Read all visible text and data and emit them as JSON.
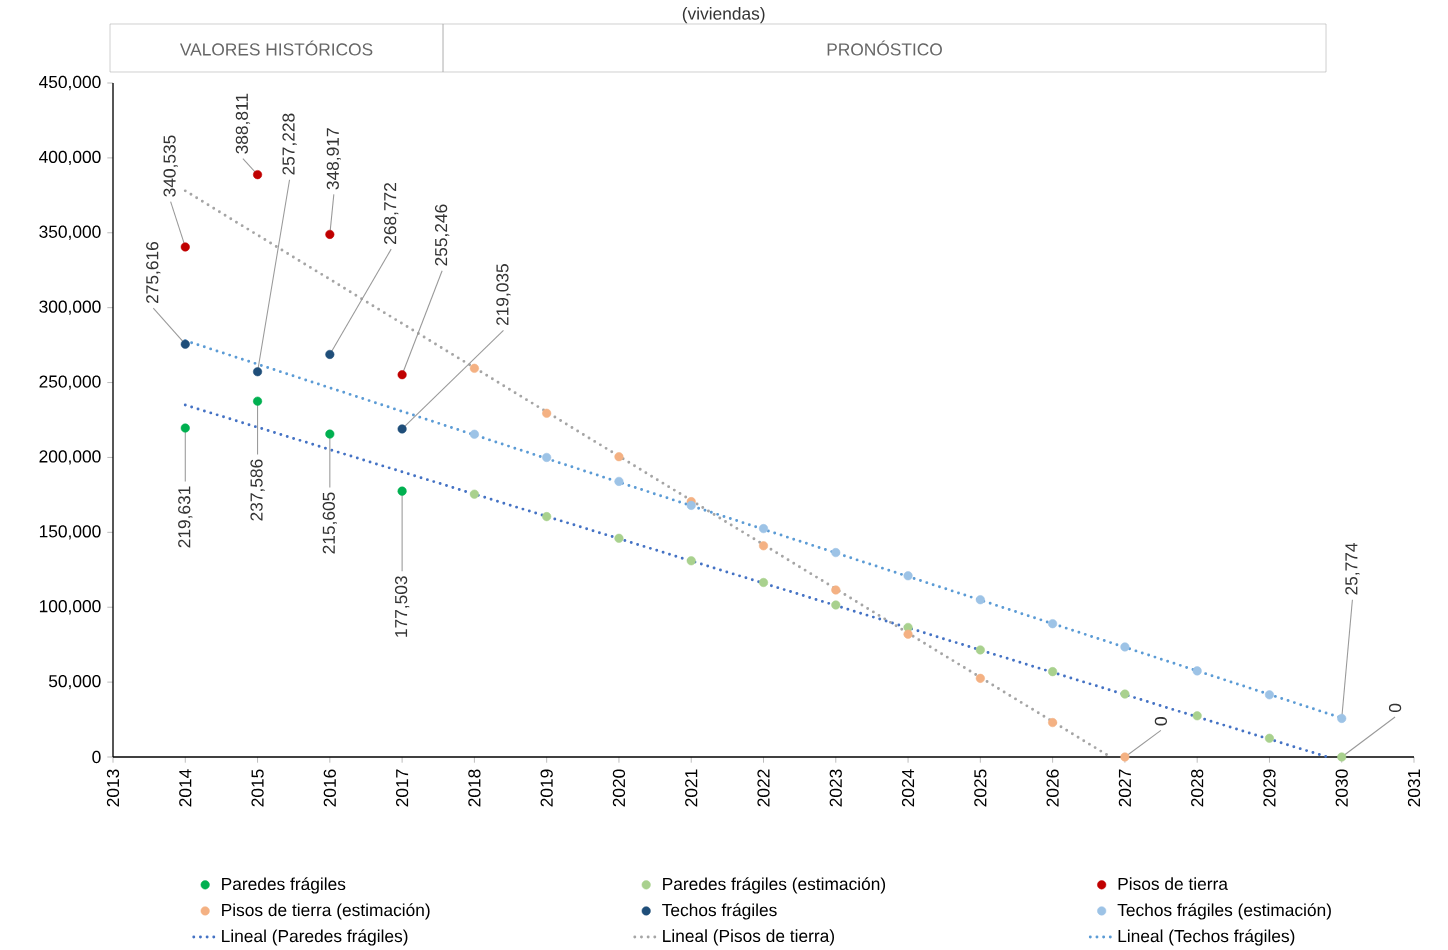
{
  "chart_data": {
    "type": "scatter",
    "title": "(viviendas)",
    "annotations": [
      "VALORES HISTÓRICOS",
      "PRONÓSTICO"
    ],
    "xlim": [
      2013,
      2031
    ],
    "xticks": [
      2013,
      2014,
      2015,
      2016,
      2017,
      2018,
      2019,
      2020,
      2021,
      2022,
      2023,
      2024,
      2025,
      2026,
      2027,
      2028,
      2029,
      2030,
      2031
    ],
    "ylim": [
      0,
      450000
    ],
    "yticks": [
      {
        "value": 0,
        "label": "0"
      },
      {
        "value": 50000,
        "label": "50,000"
      },
      {
        "value": 100000,
        "label": "100,000"
      },
      {
        "value": 150000,
        "label": "150,000"
      },
      {
        "value": 200000,
        "label": "200,000"
      },
      {
        "value": 250000,
        "label": "250,000"
      },
      {
        "value": 300000,
        "label": "300,000"
      },
      {
        "value": 350000,
        "label": "350,000"
      },
      {
        "value": 400000,
        "label": "400,000"
      },
      {
        "value": 450000,
        "label": "450,000"
      }
    ],
    "grid": false,
    "legend": "bottom",
    "series": [
      {
        "name": "Paredes frágiles",
        "marker": "circle",
        "color": "#00b050",
        "x": [
          2014,
          2015,
          2016,
          2017
        ],
        "values": [
          219631,
          237586,
          215605,
          177503
        ],
        "value_labels": [
          "219,631",
          "237,586",
          "215,605",
          "177,503"
        ]
      },
      {
        "name": "Paredes frágiles (estimación)",
        "marker": "circle",
        "color": "#a9d18e",
        "x": [
          2018,
          2019,
          2020,
          2021,
          2022,
          2023,
          2024,
          2025,
          2026,
          2027,
          2028,
          2029,
          2030
        ],
        "values": [
          175500,
          160500,
          146000,
          131000,
          116500,
          101500,
          86500,
          71500,
          57000,
          42000,
          27500,
          12500,
          0
        ],
        "value_labels": [
          null,
          null,
          null,
          null,
          null,
          null,
          null,
          null,
          null,
          null,
          null,
          null,
          "0"
        ]
      },
      {
        "name": "Pisos de tierra",
        "marker": "circle",
        "color": "#c00000",
        "x": [
          2014,
          2015,
          2016,
          2017
        ],
        "values": [
          340535,
          388811,
          348917,
          255246
        ],
        "value_labels": [
          "340,535",
          "388,811",
          "348,917",
          "255,246"
        ]
      },
      {
        "name": "Pisos de tierra (estimación)",
        "marker": "circle",
        "color": "#f4b183",
        "x": [
          2018,
          2019,
          2020,
          2021,
          2022,
          2023,
          2024,
          2025,
          2026,
          2027
        ],
        "values": [
          259500,
          229500,
          200500,
          170500,
          141000,
          111500,
          82000,
          52500,
          23000,
          0
        ],
        "value_labels": [
          null,
          null,
          null,
          null,
          null,
          null,
          null,
          null,
          null,
          "0"
        ]
      },
      {
        "name": "Techos frágiles",
        "marker": "circle",
        "color": "#1f4e79",
        "x": [
          2014,
          2015,
          2016,
          2017
        ],
        "values": [
          275616,
          257228,
          268772,
          219035
        ],
        "value_labels": [
          "275,616",
          "257,228",
          "268,772",
          "219,035"
        ]
      },
      {
        "name": "Techos frágiles (estimación)",
        "marker": "circle",
        "color": "#9dc3e6",
        "x": [
          2018,
          2019,
          2020,
          2021,
          2022,
          2023,
          2024,
          2025,
          2026,
          2027,
          2028,
          2029,
          2030
        ],
        "values": [
          215500,
          200000,
          184000,
          168000,
          152500,
          136500,
          121000,
          105000,
          89000,
          73500,
          57500,
          41500,
          25774
        ],
        "value_labels": [
          null,
          null,
          null,
          null,
          null,
          null,
          null,
          null,
          null,
          null,
          null,
          null,
          "25,774"
        ]
      },
      {
        "name": "Lineal (Paredes frágiles)",
        "type": "line",
        "line_style": "dotted",
        "marker": "none",
        "color": "#4472c4",
        "x": [
          2014,
          2029.8
        ],
        "values": [
          235000,
          0
        ]
      },
      {
        "name": "Lineal (Pisos de tierra)",
        "type": "line",
        "line_style": "dotted",
        "marker": "none",
        "color": "#a5a5a5",
        "x": [
          2014,
          2026.8
        ],
        "values": [
          378000,
          0
        ]
      },
      {
        "name": "Lineal (Techos frágiles)",
        "type": "line",
        "line_style": "dotted",
        "marker": "none",
        "color": "#5b9bd5",
        "x": [
          2014,
          2030
        ],
        "values": [
          278000,
          26000
        ]
      }
    ]
  }
}
